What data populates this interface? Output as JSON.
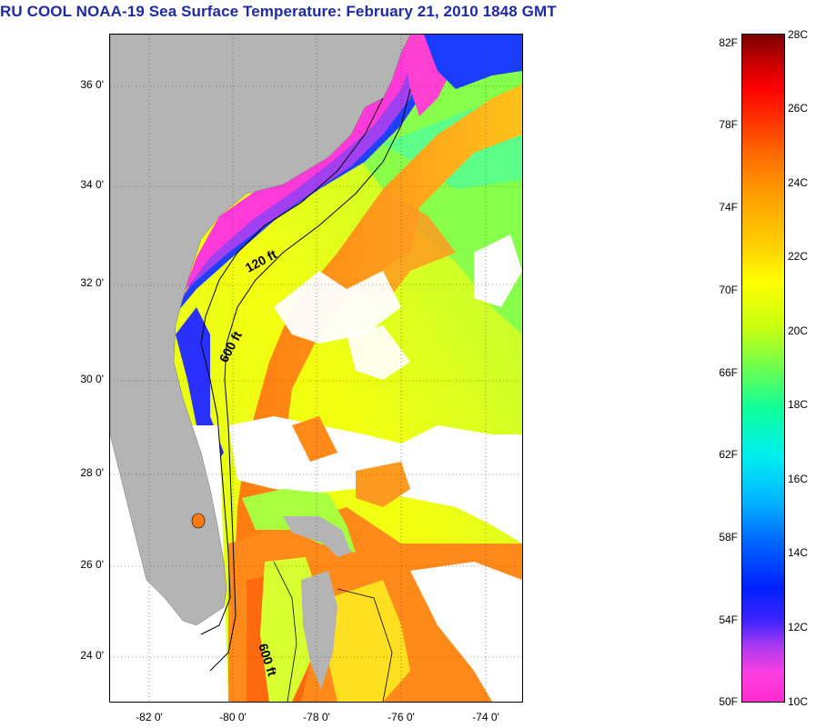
{
  "title": "RU COOL  NOAA-19  Sea Surface Temperature:  February 21, 2010 1848 GMT",
  "map": {
    "latitude_labels": [
      "36 0'",
      "34 0'",
      "32 0'",
      "30 0'",
      "28 0'",
      "26 0'",
      "24 0'"
    ],
    "longitude_labels": [
      "-82 0'",
      "-80 0'",
      "-78 0'",
      "-76 0'",
      "-74 0'"
    ],
    "contour_labels": [
      "120 ft",
      "600 ft",
      "600 ft"
    ],
    "colors": {
      "land": "#b4b4b4",
      "cloud": "#ffffff",
      "gulf_stream": "#ff8c1a",
      "shelf_cold": "#ff40d8"
    }
  },
  "colorbar": {
    "fahrenheit_labels": [
      "82F",
      "78F",
      "74F",
      "70F",
      "66F",
      "62F",
      "58F",
      "54F",
      "50F"
    ],
    "celsius_labels": [
      "28C",
      "26C",
      "24C",
      "22C",
      "20C",
      "18C",
      "16C",
      "14C",
      "12C",
      "10C"
    ],
    "range_c": [
      10,
      28
    ],
    "range_f": [
      50,
      82.4
    ]
  }
}
